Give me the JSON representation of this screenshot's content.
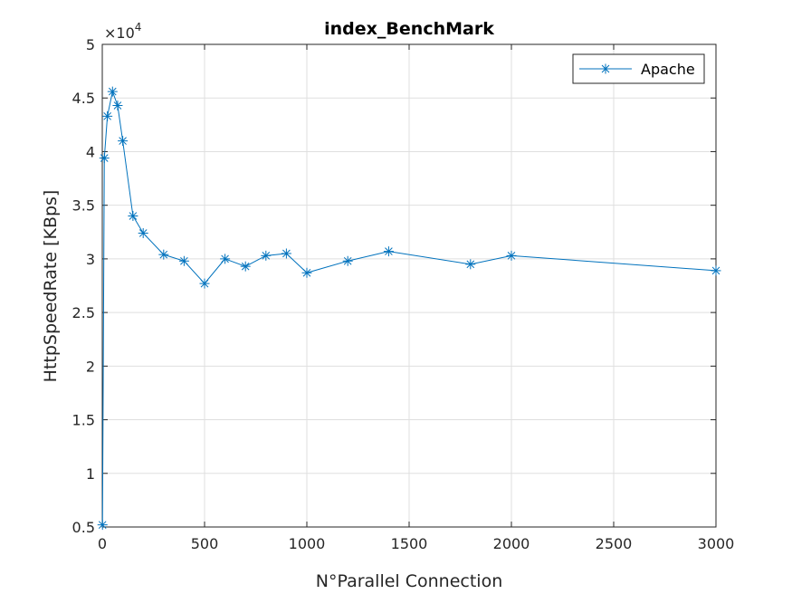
{
  "chart_data": {
    "type": "line",
    "title": "index_BenchMark",
    "xlabel": "N°Parallel Connection",
    "ylabel": "HttpSpeedRate [KBps]",
    "y_exponent_label": "×10",
    "y_exponent": "4",
    "xlim": [
      0,
      3000
    ],
    "ylim": [
      0.5,
      5
    ],
    "x_ticks": [
      "0",
      "500",
      "1000",
      "1500",
      "2000",
      "2500",
      "3000"
    ],
    "y_ticks": [
      "0.5",
      "1",
      "1.5",
      "2",
      "2.5",
      "3",
      "3.5",
      "4",
      "4.5",
      "5"
    ],
    "grid": true,
    "legend_position": "top-right",
    "series": [
      {
        "name": "Apache",
        "color": "#0072BD",
        "marker": "asterisk",
        "x": [
          1,
          10,
          25,
          50,
          75,
          100,
          150,
          200,
          300,
          400,
          500,
          600,
          700,
          800,
          900,
          1000,
          1200,
          1400,
          1800,
          2000,
          3000
        ],
        "y": [
          0.52,
          3.94,
          4.33,
          4.56,
          4.43,
          4.1,
          3.4,
          3.24,
          3.04,
          2.98,
          2.77,
          3.0,
          2.93,
          3.03,
          3.05,
          2.87,
          2.98,
          3.07,
          2.95,
          3.03,
          2.89
        ]
      }
    ]
  }
}
